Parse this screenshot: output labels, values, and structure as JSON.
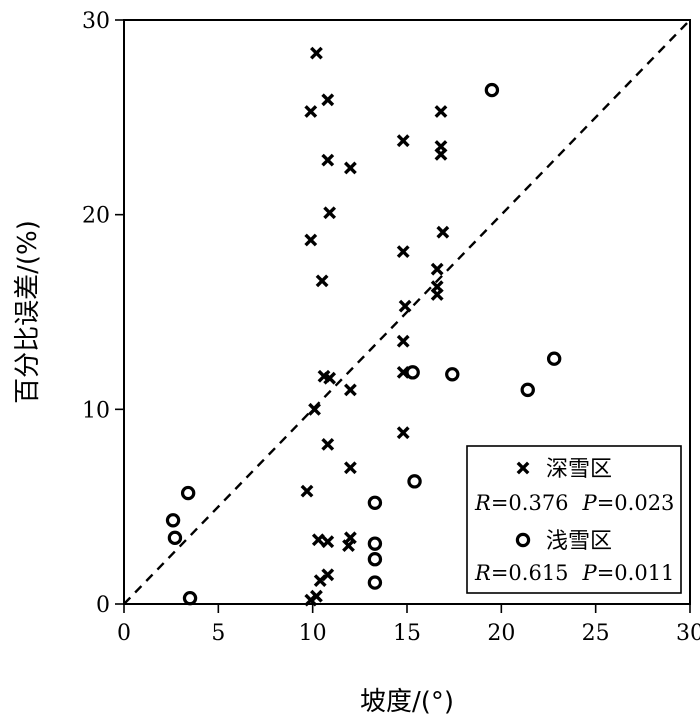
{
  "chart_data": {
    "type": "scatter",
    "title": "",
    "xlabel": "坡度/(°)",
    "ylabel": "百分比误差/(%)",
    "xlim": [
      0,
      30
    ],
    "ylim": [
      0,
      30
    ],
    "x_ticks": [
      0,
      5,
      10,
      15,
      20,
      25,
      30
    ],
    "y_ticks": [
      0,
      10,
      20,
      30
    ],
    "grid": false,
    "reference_line": {
      "style": "dashed",
      "from": [
        0,
        0
      ],
      "to": [
        30,
        30
      ]
    },
    "legend_position": "bottom-right",
    "series": [
      {
        "name": "深雪区",
        "marker": "x",
        "stats": {
          "R_label": "R",
          "R": "0.376",
          "P_label": "P",
          "P": "0.023"
        },
        "points": [
          [
            10.2,
            28.3
          ],
          [
            9.9,
            25.3
          ],
          [
            10.8,
            25.9
          ],
          [
            10.8,
            22.8
          ],
          [
            12.0,
            22.4
          ],
          [
            10.9,
            20.1
          ],
          [
            9.9,
            18.7
          ],
          [
            10.5,
            16.6
          ],
          [
            10.6,
            11.7
          ],
          [
            10.9,
            11.6
          ],
          [
            12.0,
            11.0
          ],
          [
            10.1,
            10.0
          ],
          [
            10.8,
            8.2
          ],
          [
            12.0,
            7.0
          ],
          [
            9.7,
            5.8
          ],
          [
            10.3,
            3.3
          ],
          [
            10.8,
            3.2
          ],
          [
            12.0,
            3.4
          ],
          [
            11.9,
            3.0
          ],
          [
            10.8,
            1.5
          ],
          [
            10.4,
            1.2
          ],
          [
            10.2,
            0.4
          ],
          [
            9.9,
            0.2
          ],
          [
            14.8,
            23.8
          ],
          [
            16.8,
            25.3
          ],
          [
            16.8,
            23.5
          ],
          [
            16.8,
            23.1
          ],
          [
            16.9,
            19.1
          ],
          [
            14.8,
            18.1
          ],
          [
            16.6,
            17.2
          ],
          [
            16.6,
            16.3
          ],
          [
            16.6,
            15.9
          ],
          [
            14.9,
            15.3
          ],
          [
            14.8,
            13.5
          ],
          [
            14.8,
            11.9
          ],
          [
            14.8,
            8.8
          ]
        ]
      },
      {
        "name": "浅雪区",
        "marker": "o",
        "stats": {
          "R_label": "R",
          "R": "0.615",
          "P_label": "P",
          "P": "0.011"
        },
        "points": [
          [
            19.5,
            26.4
          ],
          [
            22.8,
            12.6
          ],
          [
            21.4,
            11.0
          ],
          [
            17.4,
            11.8
          ],
          [
            15.3,
            11.9
          ],
          [
            15.4,
            6.3
          ],
          [
            13.3,
            5.2
          ],
          [
            13.3,
            3.1
          ],
          [
            13.3,
            2.3
          ],
          [
            13.3,
            1.1
          ],
          [
            3.4,
            5.7
          ],
          [
            2.6,
            4.3
          ],
          [
            2.7,
            3.4
          ],
          [
            3.5,
            0.3
          ]
        ]
      }
    ]
  }
}
